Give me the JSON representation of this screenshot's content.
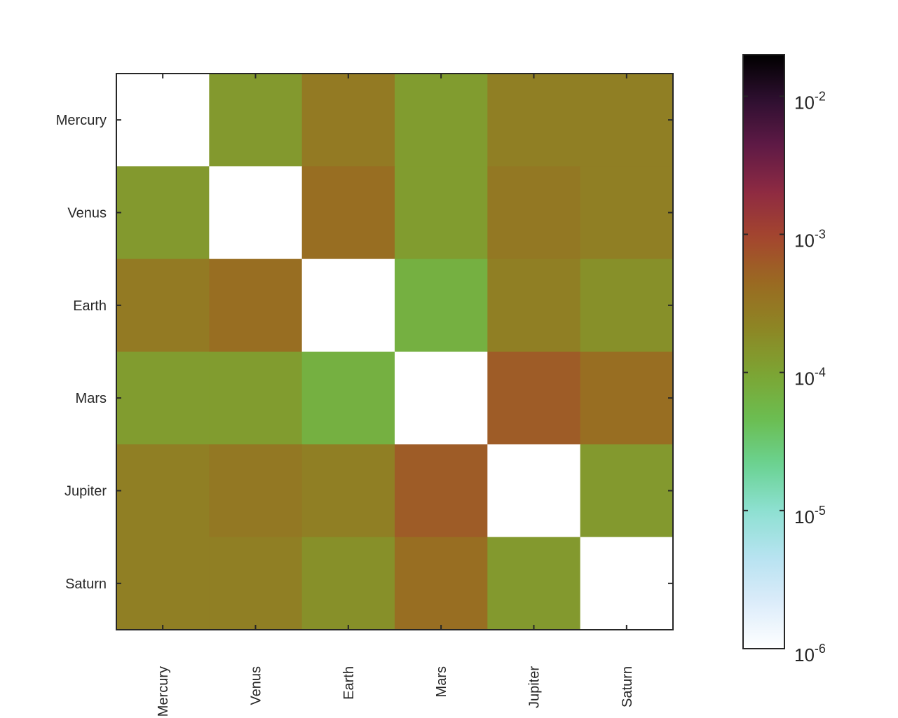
{
  "chart_data": {
    "type": "heatmap",
    "title": "",
    "xlabel": "",
    "ylabel": "",
    "rows": [
      "Mercury",
      "Venus",
      "Earth",
      "Mars",
      "Jupiter",
      "Saturn"
    ],
    "cols": [
      "Mercury",
      "Venus",
      "Earth",
      "Mars",
      "Jupiter",
      "Saturn"
    ],
    "values": [
      [
        null,
        0.00013,
        0.00029,
        0.00012,
        0.00025,
        0.00025
      ],
      [
        0.00013,
        null,
        0.0004,
        0.00012,
        0.0003,
        0.00025
      ],
      [
        0.00029,
        0.0004,
        null,
        7e-05,
        0.00025,
        0.00016
      ],
      [
        0.00012,
        0.00012,
        7e-05,
        null,
        0.0006,
        0.0004
      ],
      [
        0.00025,
        0.0003,
        0.00025,
        0.0006,
        null,
        0.00013
      ],
      [
        0.00025,
        0.00025,
        0.00016,
        0.0004,
        0.00013,
        null
      ]
    ],
    "colorbar": {
      "scale": "log",
      "range": [
        1e-06,
        0.02
      ],
      "ticks": [
        {
          "value": 1e-06,
          "base": "10",
          "exp": "-6"
        },
        {
          "value": 1e-05,
          "base": "10",
          "exp": "-5"
        },
        {
          "value": 0.0001,
          "base": "10",
          "exp": "-4"
        },
        {
          "value": 0.001,
          "base": "10",
          "exp": "-3"
        },
        {
          "value": 0.01,
          "base": "10",
          "exp": "-2"
        }
      ],
      "colormap": [
        "#ffffff",
        "#dcecfa",
        "#b7e3f1",
        "#8ee0d2",
        "#6bd394",
        "#6bbe52",
        "#7ca534",
        "#8d8624",
        "#9a6a22",
        "#a4462e",
        "#8e2a42",
        "#5f1a46",
        "#2e0f30",
        "#000000"
      ]
    },
    "diagonal_color": "#ffffff",
    "grid": false
  }
}
